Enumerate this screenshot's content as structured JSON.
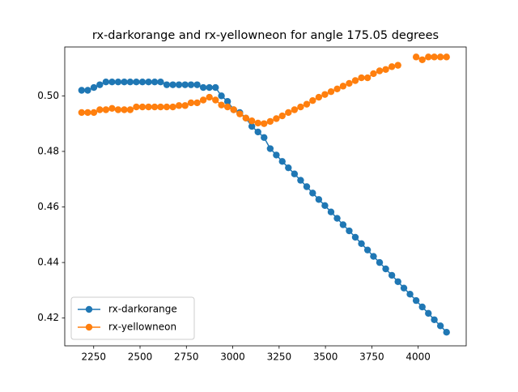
{
  "chart_data": {
    "type": "line",
    "title": "rx-darkorange and rx-yellowneon for angle 175.05 degrees",
    "x": [
      2185,
      2218,
      2251,
      2283,
      2316,
      2349,
      2382,
      2415,
      2447,
      2480,
      2513,
      2546,
      2579,
      2611,
      2644,
      2677,
      2710,
      2743,
      2775,
      2808,
      2841,
      2874,
      2907,
      2939,
      2972,
      3005,
      3038,
      3071,
      3103,
      3136,
      3169,
      3202,
      3235,
      3267,
      3300,
      3333,
      3366,
      3399,
      3431,
      3464,
      3497,
      3530,
      3563,
      3595,
      3628,
      3661,
      3694,
      3727,
      3759,
      3792,
      3825,
      3858,
      3891,
      3923,
      3956,
      3989,
      4022,
      4055,
      4087,
      4120,
      4153
    ],
    "series": [
      {
        "name": "rx-darkorange",
        "color": "#1f77b4",
        "values": [
          0.502,
          0.502,
          0.503,
          0.504,
          0.505,
          0.505,
          0.505,
          0.505,
          0.505,
          0.505,
          0.505,
          0.505,
          0.505,
          0.505,
          0.504,
          0.504,
          0.504,
          0.504,
          0.504,
          0.504,
          0.503,
          0.503,
          0.503,
          0.5,
          0.498,
          0.495,
          0.494,
          0.492,
          0.489,
          0.487,
          0.485,
          0.481,
          0.4787,
          0.4764,
          0.4741,
          0.4719,
          0.4696,
          0.4673,
          0.465,
          0.4627,
          0.4605,
          0.4582,
          0.4559,
          0.4536,
          0.4514,
          0.4491,
          0.4468,
          0.4445,
          0.4422,
          0.44,
          0.4377,
          0.4354,
          0.4331,
          0.4308,
          0.4286,
          0.4263,
          0.424,
          0.4217,
          0.4194,
          0.4172,
          0.4149
        ]
      },
      {
        "name": "rx-yellowneon",
        "color": "#ff7f0e",
        "values": [
          0.494,
          0.494,
          0.494,
          0.495,
          0.495,
          0.4955,
          0.495,
          0.495,
          0.495,
          0.496,
          0.496,
          0.496,
          0.496,
          0.496,
          0.496,
          0.496,
          0.4965,
          0.4965,
          0.4975,
          0.4975,
          0.4985,
          0.4995,
          0.4985,
          0.4967,
          0.496,
          0.495,
          0.4935,
          0.492,
          0.491,
          0.4902,
          0.49,
          0.4908,
          0.4918,
          0.4928,
          0.494,
          0.495,
          0.496,
          0.497,
          0.4983,
          0.4995,
          0.5005,
          0.5015,
          0.5025,
          0.5035,
          0.5045,
          0.5055,
          0.5065,
          0.5065,
          0.508,
          0.509,
          0.5095,
          0.5105,
          0.511,
          null,
          null,
          0.514,
          0.513,
          0.514,
          0.514,
          0.514,
          0.514
        ]
      }
    ],
    "xlim": [
      2094,
      4259
    ],
    "ylim": [
      0.41,
      0.5176
    ],
    "xticks": [
      2250,
      2500,
      2750,
      3000,
      3250,
      3500,
      3750,
      4000
    ],
    "yticks": [
      0.42,
      0.44,
      0.46,
      0.48,
      {
        "value": 0.5,
        "label": "0.50"
      }
    ],
    "legend": "lower left"
  }
}
